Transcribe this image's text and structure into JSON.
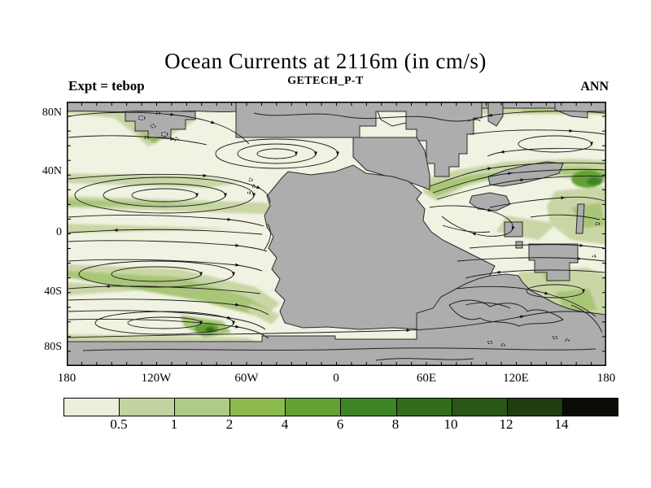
{
  "header": {
    "title": "Ocean Currents at 2116m (in cm/s)",
    "subtitle": "GETECH_P-T",
    "left_annotation": "Expt = tebop",
    "right_annotation": "ANN"
  },
  "axes": {
    "x_labels": [
      "180",
      "120W",
      "60W",
      "0",
      "60E",
      "120E",
      "180"
    ],
    "y_labels": [
      "80N",
      "40N",
      "0",
      "40S",
      "80S"
    ]
  },
  "colorbar": {
    "labels": [
      "0.5",
      "1",
      "2",
      "4",
      "6",
      "8",
      "10",
      "12",
      "14"
    ],
    "colors": [
      "#ebefdb",
      "#c2d3a0",
      "#b0ca87",
      "#8cba4d",
      "#63a135",
      "#3f8426",
      "#326d1c",
      "#2a5717",
      "#203e10",
      "#0b0c08"
    ]
  },
  "chart_data": {
    "type": "heatmap",
    "subtype": "filled-contour map with streamlines",
    "title": "Ocean Currents at 2116m (in cm/s)",
    "subtitle": "GETECH_P-T",
    "annotations": [
      "Expt = tebop",
      "ANN"
    ],
    "field": "ocean current speed",
    "depth_label": "2116m",
    "units": "cm/s",
    "x_axis": {
      "tick_labels": [
        "180",
        "120W",
        "60W",
        "0",
        "60E",
        "120E",
        "180"
      ],
      "minor_tick_interval_deg": 10,
      "range": [
        -180,
        180
      ]
    },
    "y_axis": {
      "tick_labels": [
        "80N",
        "40N",
        "0",
        "40S",
        "80S"
      ],
      "minor_tick_interval_deg": 10,
      "range": [
        -90,
        90
      ]
    },
    "contour_levels": [
      0.5,
      1,
      2,
      4,
      6,
      8,
      10,
      12,
      14
    ],
    "palette": [
      "#ebefdb",
      "#c2d3a0",
      "#b0ca87",
      "#8cba4d",
      "#63a135",
      "#3f8426",
      "#326d1c",
      "#2a5717",
      "#203e10",
      "#0b0c08"
    ],
    "ocean_background_color": "#f0f2e2",
    "land_mask_color": "#adadad",
    "legend_position": "bottom",
    "grid": false
  }
}
